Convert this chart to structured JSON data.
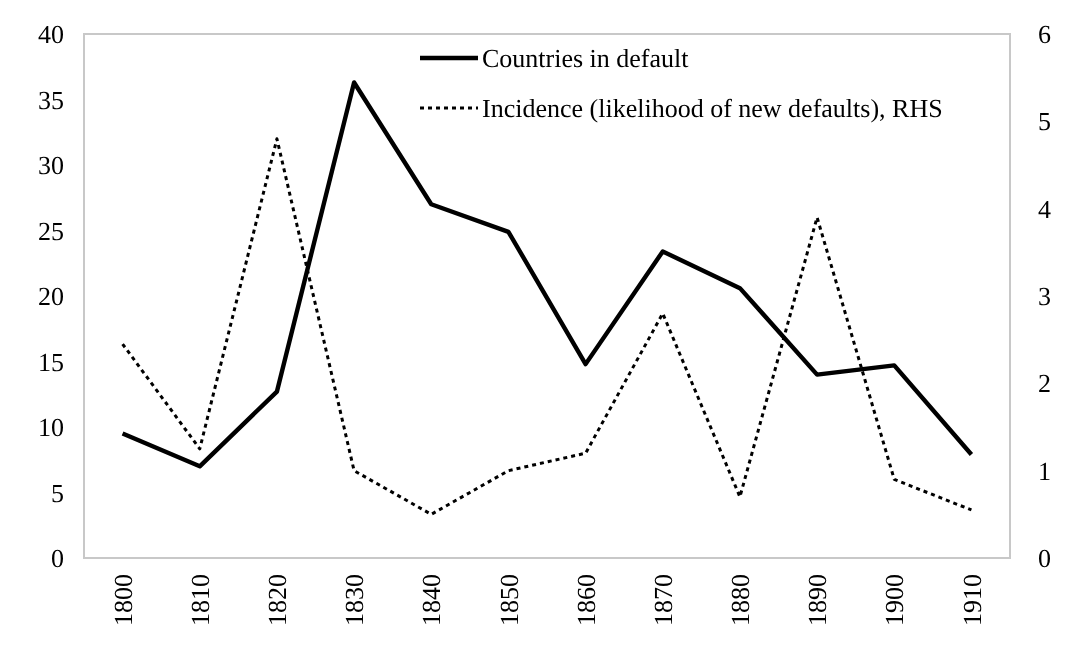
{
  "chart_data": {
    "type": "line",
    "categories": [
      "1800",
      "1810",
      "1820",
      "1830",
      "1840",
      "1850",
      "1860",
      "1870",
      "1880",
      "1890",
      "1900",
      "1910"
    ],
    "series": [
      {
        "name": "Countries in default",
        "color": "#000000",
        "line_style": "solid",
        "values": [
          9.5,
          7.0,
          12.7,
          36.3,
          27.0,
          24.9,
          14.8,
          23.4,
          20.6,
          14.0,
          14.7,
          7.9
        ]
      },
      {
        "name": "Incidence (likelihood of new defaults), RHS",
        "color": "#000000",
        "line_style": "dotted",
        "axis": "y2",
        "values": [
          2.45,
          1.25,
          4.8,
          1.0,
          0.5,
          1.0,
          1.2,
          2.8,
          0.7,
          3.9,
          0.9,
          0.55
        ]
      }
    ],
    "ylim": [
      0,
      40
    ],
    "yticks": [
      0,
      5,
      10,
      15,
      20,
      25,
      30,
      35,
      40
    ],
    "y2lim": [
      0,
      6
    ],
    "y2ticks": [
      0,
      1,
      2,
      3,
      4,
      5,
      6
    ],
    "grid": false,
    "legend": "top right",
    "marker": "none"
  }
}
